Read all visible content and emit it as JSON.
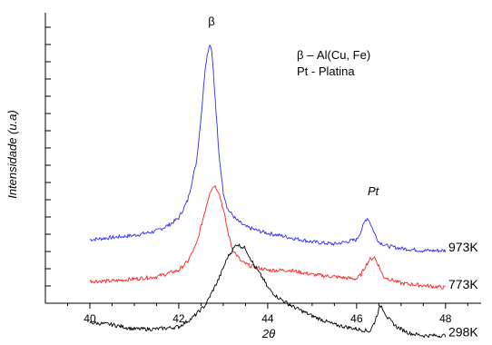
{
  "chart_data": {
    "type": "line",
    "xlabel": "2θ",
    "ylabel": "Intensidade (u.a)",
    "xlim": [
      39,
      48.8
    ],
    "x_ticks": [
      "40",
      "42",
      "44",
      "46",
      "48"
    ],
    "y_tick_labels": false,
    "grid": false,
    "annotations": {
      "beta": "β",
      "pt": "Pt",
      "legend_line1": "β – Al(Cu, Fe)",
      "legend_line2": "Pt - Platina"
    },
    "series": [
      {
        "name": "973K",
        "color": "#2b2bff",
        "x": [
          40.0,
          40.5,
          41.0,
          41.5,
          41.8,
          42.0,
          42.2,
          42.4,
          42.5,
          42.6,
          42.65,
          42.7,
          42.75,
          42.8,
          42.9,
          43.0,
          43.1,
          43.3,
          43.5,
          43.8,
          44.0,
          44.5,
          45.0,
          45.5,
          46.0,
          46.1,
          46.2,
          46.25,
          46.3,
          46.4,
          46.5,
          46.7,
          47.0,
          47.5,
          48.0
        ],
        "y": [
          10,
          10.5,
          11,
          12,
          13.5,
          15,
          19,
          28,
          38,
          50,
          53,
          55,
          53,
          45,
          30,
          21,
          17,
          14.5,
          13,
          12,
          11.5,
          10.5,
          9.5,
          9,
          10,
          12,
          14.5,
          15,
          14,
          11.5,
          9.5,
          8.5,
          8,
          7.5,
          7.5
        ]
      },
      {
        "name": "773K",
        "color": "#ff2020",
        "x": [
          40.0,
          40.5,
          41.0,
          41.5,
          42.0,
          42.2,
          42.4,
          42.6,
          42.7,
          42.8,
          42.9,
          43.0,
          43.1,
          43.2,
          43.4,
          43.6,
          44.0,
          44.5,
          45.0,
          45.5,
          46.0,
          46.1,
          46.2,
          46.3,
          46.4,
          46.5,
          46.6,
          47.0,
          47.5,
          48.0
        ],
        "y": [
          0.5,
          0.5,
          1,
          1.5,
          3,
          5,
          9,
          17,
          21,
          22.5,
          21,
          17,
          12,
          8,
          5,
          4,
          3,
          3,
          2,
          1.5,
          1,
          2,
          4,
          5.5,
          6,
          4,
          1.5,
          0,
          -0.5,
          -1
        ]
      },
      {
        "name": "298K",
        "color": "#000000",
        "x": [
          40.0,
          40.5,
          41.0,
          41.5,
          42.0,
          42.3,
          42.6,
          42.9,
          43.1,
          43.3,
          43.5,
          43.7,
          43.9,
          44.0,
          44.2,
          44.5,
          45.0,
          45.5,
          46.0,
          46.3,
          46.4,
          46.5,
          46.55,
          46.6,
          46.7,
          46.9,
          47.2,
          47.5,
          48.0
        ],
        "y": [
          -9,
          -9.5,
          -10.5,
          -10.5,
          -10,
          -8,
          -5,
          1,
          6,
          9,
          8,
          4,
          1,
          -1,
          -3,
          -5,
          -7.5,
          -9.5,
          -10.5,
          -11,
          -9,
          -6,
          -5,
          -6,
          -8,
          -10,
          -11.5,
          -12,
          -12
        ]
      }
    ]
  }
}
